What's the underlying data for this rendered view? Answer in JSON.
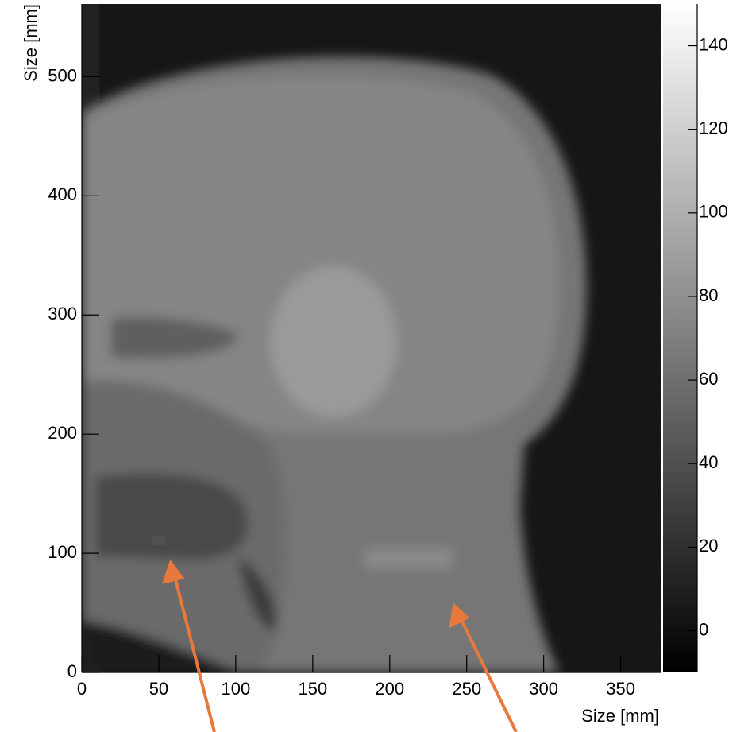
{
  "chart_data": {
    "type": "image",
    "colormap": "gray",
    "x_label": "Size [mm]",
    "y_label": "Size [mm]",
    "xlim": [
      0,
      376
    ],
    "ylim": [
      0,
      561
    ],
    "xticks": [
      0,
      50,
      100,
      150,
      200,
      250,
      300,
      350
    ],
    "yticks": [
      0,
      100,
      200,
      300,
      400,
      500
    ],
    "colorbar": {
      "lim": [
        -10,
        150
      ],
      "ticks": [
        0,
        20,
        40,
        60,
        80,
        100,
        120,
        140
      ]
    }
  }
}
